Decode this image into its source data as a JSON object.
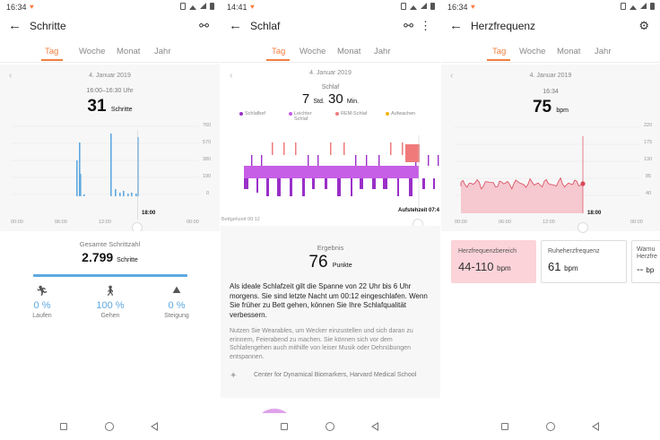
{
  "colors": {
    "accent": "#f08040",
    "steps": "#5ea8e0",
    "deep_sleep": "#9a2fc8",
    "light_sleep": "#c65ee6",
    "rem": "#f07a7a",
    "awake": "#f5b300",
    "heart": "#e06070"
  },
  "steps_screen": {
    "status_time": "16:34",
    "title": "Schritte",
    "tabs": [
      "Tag",
      "Woche",
      "Monat",
      "Jahr"
    ],
    "date": "4. Januar 2019",
    "range": "16:00–16:30 Uhr",
    "value": "31",
    "unit": "Schritte",
    "y_ticks": [
      "760",
      "570",
      "380",
      "190",
      "0"
    ],
    "x_ticks": [
      "00:00",
      "06:00",
      "12:00",
      "18:00",
      "00:00"
    ],
    "total_label": "Gesamte Schrittzahl",
    "total_value": "2.799",
    "total_unit": "Schritte",
    "stats": [
      {
        "icon": "running-icon",
        "pct": "0 %",
        "label": "Laufen"
      },
      {
        "icon": "walking-icon",
        "pct": "100 %",
        "label": "Gehen"
      },
      {
        "icon": "stairs-icon",
        "pct": "0 %",
        "label": "Steigung"
      }
    ]
  },
  "sleep_screen": {
    "status_time": "14:41",
    "title": "Schlaf",
    "tabs": [
      "Tag",
      "Woche",
      "Monat",
      "Jahr"
    ],
    "date": "4. Januar 2019",
    "label": "Schlaf",
    "hours": "7",
    "hours_unit": "Std.",
    "minutes": "30",
    "minutes_unit": "Min.",
    "legend": [
      {
        "label": "Schlafbef",
        "color": "#9a2fc8"
      },
      {
        "label": "Leichter Schlaf",
        "color": "#c65ee6"
      },
      {
        "label": "REM-Schlaf",
        "color": "#f07a7a"
      },
      {
        "label": "Aufwachen",
        "color": "#f5b300"
      }
    ],
    "bedtime": "Bettgeh­zeit 00:12",
    "wakeup": "Aufstehzeit 07:4",
    "result_label": "Ergebnis",
    "result_value": "76",
    "result_unit": "Punkte",
    "advice": "Als ideale Schlafzeit gilt die Spanne von 22 Uhr bis 6 Uhr morgens. Sie sind letzte Nacht um 00:12 eingeschlafen. Wenn Sie früher zu Bett gehen, können Sie Ihre Schlafqualität verbessern.",
    "tip": "Nutzen Sie Wearables, um Wecker einzustellen und sich daran zu erinnern, Feierabend zu machen. Sie können sich vor dem Schlafengehen auch mithilfe von leiser Musik oder Dehnübungen entspannen.",
    "source": "Center for Dynamical Biomarkers, Harvard Medical School"
  },
  "heart_screen": {
    "status_time": "16:34",
    "title": "Herzfrequenz",
    "tabs": [
      "Tag",
      "Woche",
      "Monat",
      "Jahr"
    ],
    "date": "4. Januar 2019",
    "time": "16:34",
    "value": "75",
    "unit": "bpm",
    "y_ticks": [
      "220",
      "175",
      "130",
      "85",
      "40"
    ],
    "x_ticks": [
      "00:00",
      "06:00",
      "12:00",
      "18:00",
      "00:00"
    ],
    "cards": [
      {
        "title": "Herzfrequenzbereich",
        "value": "44-110",
        "unit": "bpm"
      },
      {
        "title": "Ruheherzfrequenz",
        "value": "61",
        "unit": "bpm"
      },
      {
        "title": "Warnu\nHerzfre",
        "value": "--",
        "unit": "bp"
      }
    ]
  }
}
